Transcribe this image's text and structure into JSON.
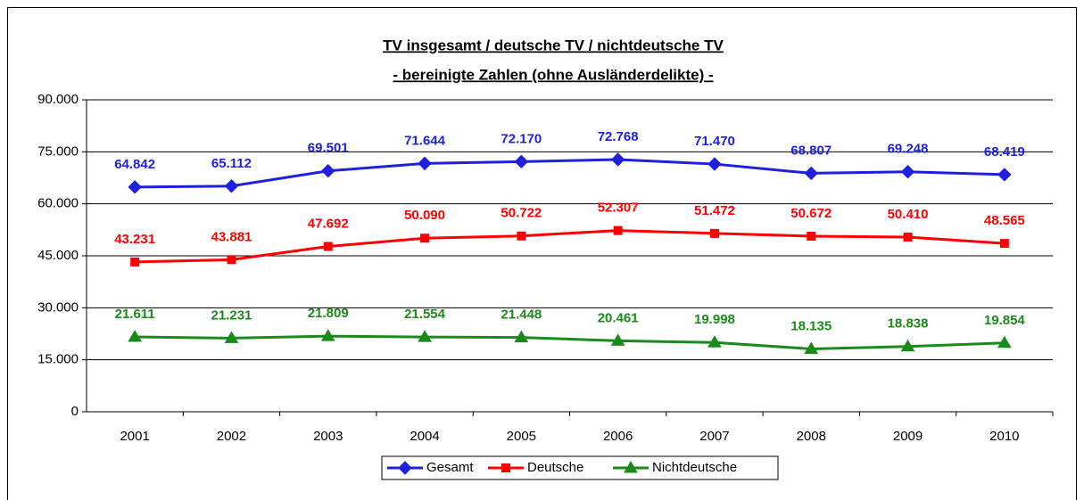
{
  "chart_data": {
    "type": "line",
    "title": "TV insgesamt / deutsche TV / nichtdeutsche TV",
    "subtitle": "- bereinigte Zahlen (ohne Ausländerdelikte) -",
    "categories": [
      "2001",
      "2002",
      "2003",
      "2004",
      "2005",
      "2006",
      "2007",
      "2008",
      "2009",
      "2010"
    ],
    "series": [
      {
        "name": "Gesamt",
        "color": "#1f1fe0",
        "marker": "diamond",
        "values": [
          64842,
          65112,
          69501,
          71644,
          72170,
          72768,
          71470,
          68807,
          69248,
          68419
        ],
        "value_labels": [
          "64.842",
          "65.112",
          "69.501",
          "71.644",
          "72.170",
          "72.768",
          "71.470",
          "68.807",
          "69.248",
          "68.419"
        ]
      },
      {
        "name": "Deutsche",
        "color": "#ff0000",
        "marker": "square",
        "values": [
          43231,
          43881,
          47692,
          50090,
          50722,
          52307,
          51472,
          50672,
          50410,
          48565
        ],
        "value_labels": [
          "43.231",
          "43.881",
          "47.692",
          "50.090",
          "50.722",
          "52.307",
          "51.472",
          "50.672",
          "50.410",
          "48.565"
        ]
      },
      {
        "name": "Nichtdeutsche",
        "color": "#1a8a1a",
        "marker": "triangle",
        "values": [
          21611,
          21231,
          21809,
          21554,
          21448,
          20461,
          19998,
          18135,
          18838,
          19854
        ],
        "value_labels": [
          "21.611",
          "21.231",
          "21.809",
          "21.554",
          "21.448",
          "20.461",
          "19.998",
          "18.135",
          "18.838",
          "19.854"
        ]
      }
    ],
    "ylim": [
      0,
      90000
    ],
    "yticks": [
      {
        "value": 0,
        "label": "0"
      },
      {
        "value": 15000,
        "label": "15.000"
      },
      {
        "value": 30000,
        "label": "30.000"
      },
      {
        "value": 45000,
        "label": "45.000"
      },
      {
        "value": 60000,
        "label": "60.000"
      },
      {
        "value": 75000,
        "label": "75.000"
      },
      {
        "value": 90000,
        "label": "90.000"
      }
    ],
    "grid": true,
    "legend": "bottom"
  }
}
